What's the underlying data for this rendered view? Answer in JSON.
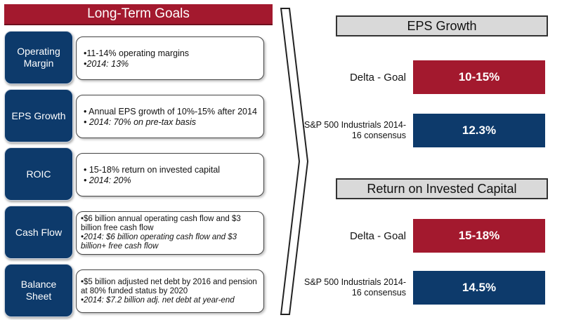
{
  "left_header": "Long-Term Goals",
  "goals": [
    {
      "name": "Operating Margin",
      "lines": [
        "•11-14% operating margins",
        "•2014:  13%"
      ]
    },
    {
      "name": "EPS Growth",
      "lines": [
        "• Annual EPS growth of 10%-15% after 2014",
        "• 2014:  70% on pre-tax basis"
      ]
    },
    {
      "name": "ROIC",
      "lines": [
        "• 15-18% return on invested capital",
        "• 2014:  20%"
      ]
    },
    {
      "name": "Cash Flow",
      "lines": [
        "•$6 billion annual operating cash flow and $3 billion free cash flow",
        "•2014:  $6 billion operating cash flow and $3 billion+ free cash flow"
      ]
    },
    {
      "name": "Balance Sheet",
      "lines": [
        "•$5 billion adjusted net debt by 2016 and pension at 80% funded status by 2020",
        "•2014: $7.2 billion adj. net debt at year-end"
      ]
    }
  ],
  "sections": [
    {
      "title": "EPS Growth",
      "rows": [
        {
          "label": "Delta - Goal",
          "value": "10-15%",
          "color": "#a3192e"
        },
        {
          "label": "S&P 500 Industrials 2014-16 consensus",
          "value": "12.3%",
          "color": "#0d3a6b"
        }
      ]
    },
    {
      "title": "Return on Invested Capital",
      "rows": [
        {
          "label": "Delta - Goal",
          "value": "15-18%",
          "color": "#a3192e"
        },
        {
          "label": "S&P 500 Industrials 2014-16 consensus",
          "value": "14.5%",
          "color": "#0d3a6b"
        }
      ]
    }
  ]
}
